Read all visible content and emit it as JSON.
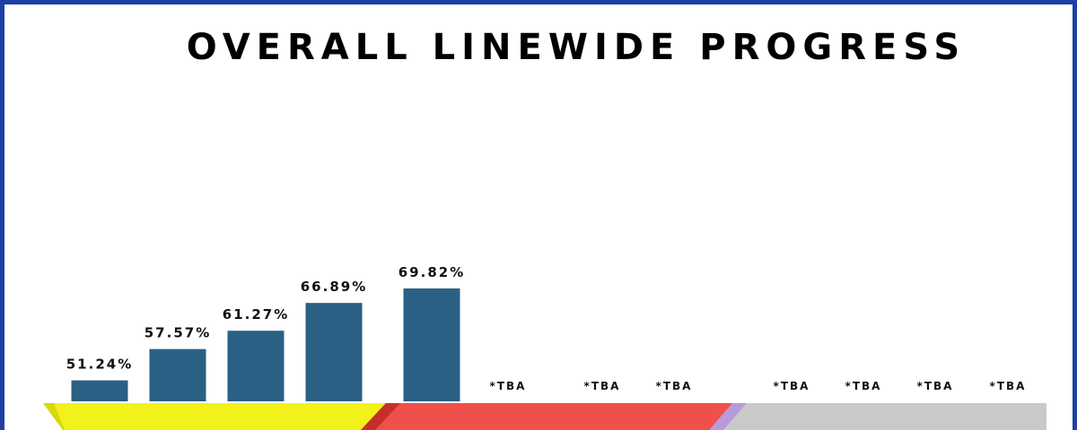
{
  "chart_data": {
    "type": "bar",
    "title": "OVERALL LINEWIDE PROGRESS",
    "value_unit": "%",
    "categories": [
      "",
      "",
      "",
      "",
      "",
      "",
      "",
      "",
      "",
      "",
      "",
      ""
    ],
    "values": [
      51.24,
      57.57,
      61.27,
      66.89,
      69.82,
      null,
      null,
      null,
      null,
      null,
      null,
      null
    ],
    "labels": [
      "51.24%",
      "57.57%",
      "61.27%",
      "66.89%",
      "69.82%",
      "*TBA",
      "*TBA",
      "*TBA",
      "*TBA",
      "*TBA",
      "*TBA",
      "*TBA"
    ],
    "bar_color": "#2a6084",
    "band_colors": [
      "#f3f11a",
      "#f0504a",
      "#c9c9c9"
    ],
    "band_accent_colors": [
      "#d8d80e",
      "#c52f29",
      "#b99ad9"
    ],
    "frame_color": "#1f3fa6"
  }
}
